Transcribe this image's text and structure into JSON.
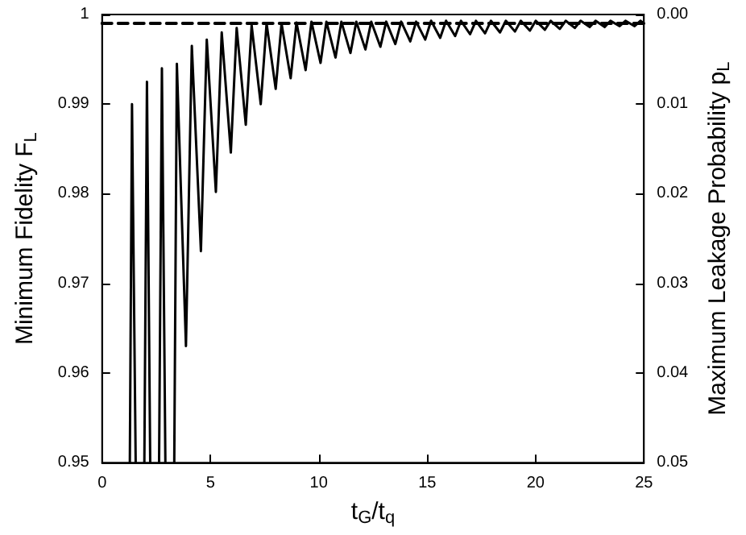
{
  "chart_data": {
    "type": "line",
    "xlabel": "t$_{G}$/t$_{q}$",
    "ylabel": "Minimum Fidelity F$_{L}$",
    "y2label": "Maximum Leakage Probability p$_{L}$",
    "xlim": [
      0,
      25
    ],
    "xticks": [
      0,
      5,
      10,
      15,
      20,
      25
    ],
    "ylim": [
      0.95,
      1
    ],
    "yticks": [
      0.95,
      0.96,
      0.97,
      0.98,
      0.99,
      1
    ],
    "y2lim": [
      0.05,
      0
    ],
    "y2ticks": [
      {
        "value": 0,
        "label": "0.00"
      },
      {
        "value": 0.01,
        "label": "0.01"
      },
      {
        "value": 0.02,
        "label": "0.02"
      },
      {
        "value": 0.03,
        "label": "0.03"
      },
      {
        "value": 0.04,
        "label": "0.04"
      },
      {
        "value": 0.05,
        "label": "0.05"
      }
    ],
    "grid": false,
    "marker": "none",
    "series": [
      {
        "color": "#000000",
        "line_style": "solid",
        "x": [
          1.28,
          1.38,
          1.55,
          1.65,
          1.95,
          2.07,
          2.22,
          2.35,
          2.63,
          2.76,
          2.92,
          3.05,
          3.33,
          3.45,
          3.87,
          4.14,
          4.56,
          4.83,
          5.25,
          5.52,
          5.94,
          6.21,
          6.63,
          6.9,
          7.32,
          7.59,
          8.01,
          8.28,
          8.7,
          8.97,
          9.39,
          9.66,
          10.08,
          10.35,
          10.77,
          11.04,
          11.46,
          11.73,
          12.15,
          12.42,
          12.84,
          13.11,
          13.53,
          13.8,
          14.22,
          14.49,
          14.91,
          15.18,
          15.6,
          15.87,
          16.29,
          16.56,
          16.98,
          17.25,
          17.67,
          17.94,
          18.36,
          18.63,
          19.05,
          19.32,
          19.74,
          20.01,
          20.43,
          20.7,
          21.12,
          21.39,
          21.81,
          22.08,
          22.5,
          22.77,
          23.19,
          23.46,
          23.88,
          24.15,
          24.57,
          24.84,
          25
        ],
        "values": [
          0.95,
          0.99,
          0.95,
          null,
          0.95,
          0.9925,
          0.95,
          null,
          0.95,
          0.994,
          0.95,
          null,
          0.95,
          0.9945,
          0.963,
          0.9965,
          0.9736,
          0.9972,
          0.9802,
          0.998,
          0.9846,
          0.9985,
          0.9877,
          0.9988,
          0.99,
          0.999,
          0.9917,
          0.999,
          0.9929,
          0.9991,
          0.9938,
          0.9992,
          0.9946,
          0.9992,
          0.9952,
          0.9992,
          0.9957,
          0.9992,
          0.9961,
          0.9992,
          0.9964,
          0.9992,
          0.9967,
          0.9992,
          0.997,
          0.9992,
          0.9972,
          0.9993,
          0.9974,
          0.9993,
          0.9976,
          0.9993,
          0.9978,
          0.9993,
          0.9979,
          0.9993,
          0.998,
          0.9993,
          0.9981,
          0.9993,
          0.9982,
          0.9993,
          0.9983,
          0.9993,
          0.9984,
          0.9993,
          0.9985,
          0.9993,
          0.9986,
          0.9993,
          0.9986,
          0.9993,
          0.9987,
          0.9993,
          0.9987,
          0.9993,
          0.999
        ]
      },
      {
        "color": "#000000",
        "line_style": "dashed",
        "axis": "y2",
        "x": [
          0,
          25
        ],
        "values": [
          0.001,
          0.001
        ]
      }
    ]
  }
}
